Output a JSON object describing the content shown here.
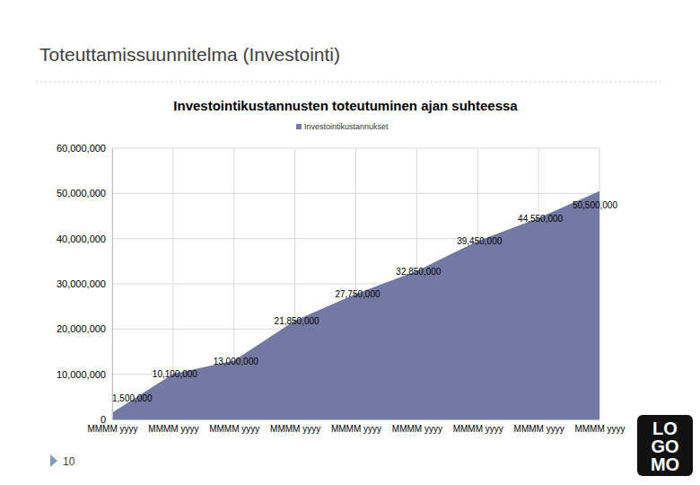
{
  "slide": {
    "title": "Toteuttamissuunnitelma (Investointi)",
    "page_number": "10",
    "logo": [
      "LO",
      "GO",
      "MO"
    ]
  },
  "chart_data": {
    "type": "area",
    "title": "Investointikustannusten toteutuminen ajan suhteessa",
    "categories": [
      "MMMM yyyy",
      "MMMM yyyy",
      "MMMM yyyy",
      "MMMM yyyy",
      "MMMM yyyy",
      "MMMM yyyy",
      "MMMM yyyy",
      "MMMM yyyy",
      "MMMM yyyy"
    ],
    "series": [
      {
        "name": "Investointikustannukset",
        "color": "#7479a3",
        "values": [
          1500000,
          10100000,
          13000000,
          21850000,
          27750000,
          32850000,
          39450000,
          44550000,
          50500000
        ],
        "value_labels": [
          "1,500,000",
          "10,100,000",
          "13,000,000",
          "21,850,000",
          "27,750,000",
          "32,850,000",
          "39,450,000",
          "44,550,000",
          "50,500,000"
        ]
      }
    ],
    "ylim": [
      0,
      60000000
    ],
    "yticks": [
      0,
      {
        "value": 10000000,
        "label": "10,000,000"
      },
      {
        "value": 20000000,
        "label": "20,000,000"
      },
      {
        "value": 30000000,
        "label": "30,000,000"
      },
      {
        "value": 40000000,
        "label": "40,000,000"
      },
      {
        "value": 50000000,
        "label": "50,000,000"
      },
      {
        "value": 60000000,
        "label": "60,000,000"
      }
    ],
    "grid": true,
    "legend": "top",
    "data_labels": true
  }
}
